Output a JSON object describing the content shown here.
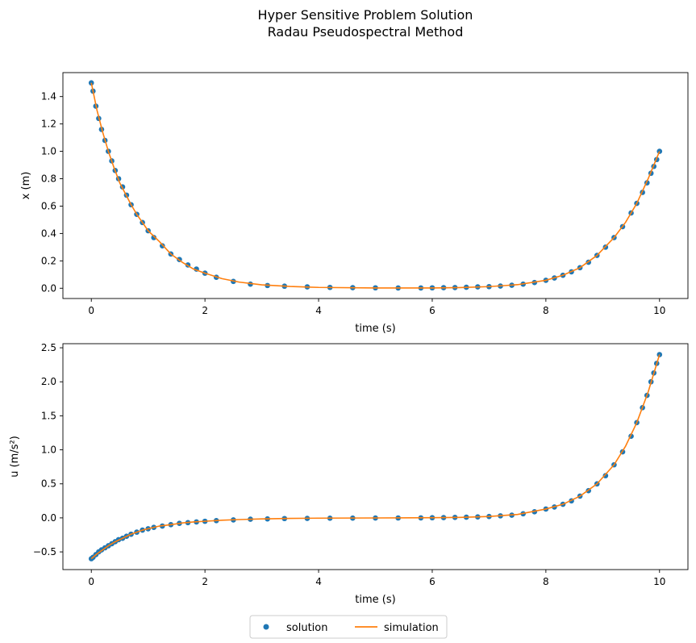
{
  "figure": {
    "title_line1": "Hyper Sensitive Problem Solution",
    "title_line2": "Radau Pseudospectral Method"
  },
  "legend": {
    "placement": "bottom-center",
    "columns": 2,
    "entries": [
      {
        "label": "solution",
        "marker": "dot",
        "color": "#1f77b4"
      },
      {
        "label": "simulation",
        "marker": "line",
        "color": "#ff7f0e"
      }
    ]
  },
  "chart_data": [
    {
      "type": "line",
      "xlabel": "time (s)",
      "ylabel": "x (m)",
      "xlim": [
        -0.5,
        10.5
      ],
      "ylim": [
        -0.075,
        1.575
      ],
      "xticks": [
        0,
        2,
        4,
        6,
        8,
        10
      ],
      "yticks": [
        0.0,
        0.2,
        0.4,
        0.6,
        0.8,
        1.0,
        1.2,
        1.4
      ],
      "ytick_labels": [
        "0.0",
        "0.2",
        "0.4",
        "0.6",
        "0.8",
        "1.0",
        "1.2",
        "1.4"
      ],
      "grid": false,
      "series": [
        {
          "name": "solution",
          "style": "markers",
          "x": [
            0.0,
            0.03,
            0.08,
            0.13,
            0.18,
            0.24,
            0.3,
            0.36,
            0.42,
            0.48,
            0.55,
            0.62,
            0.7,
            0.8,
            0.9,
            1.0,
            1.1,
            1.25,
            1.4,
            1.55,
            1.7,
            1.85,
            2.0,
            2.2,
            2.5,
            2.8,
            3.1,
            3.4,
            3.8,
            4.2,
            4.6,
            5.0,
            5.4,
            5.8,
            6.0,
            6.2,
            6.4,
            6.6,
            6.8,
            7.0,
            7.2,
            7.4,
            7.6,
            7.8,
            8.0,
            8.15,
            8.3,
            8.45,
            8.6,
            8.75,
            8.9,
            9.05,
            9.2,
            9.35,
            9.5,
            9.6,
            9.7,
            9.78,
            9.85,
            9.9,
            9.95,
            10.0
          ],
          "y": [
            1.5,
            1.44,
            1.33,
            1.24,
            1.16,
            1.08,
            1.0,
            0.93,
            0.86,
            0.8,
            0.74,
            0.68,
            0.61,
            0.54,
            0.48,
            0.42,
            0.37,
            0.31,
            0.25,
            0.21,
            0.17,
            0.14,
            0.11,
            0.08,
            0.05,
            0.03,
            0.02,
            0.015,
            0.01,
            0.006,
            0.004,
            0.003,
            0.002,
            0.002,
            0.003,
            0.004,
            0.005,
            0.007,
            0.01,
            0.012,
            0.016,
            0.022,
            0.03,
            0.042,
            0.058,
            0.075,
            0.095,
            0.12,
            0.15,
            0.19,
            0.24,
            0.3,
            0.37,
            0.45,
            0.55,
            0.62,
            0.7,
            0.77,
            0.84,
            0.89,
            0.94,
            1.0
          ]
        },
        {
          "name": "simulation",
          "style": "line",
          "x": [
            0.0,
            0.1,
            0.2,
            0.3,
            0.4,
            0.5,
            0.6,
            0.7,
            0.8,
            0.9,
            1.0,
            1.2,
            1.4,
            1.6,
            1.8,
            2.0,
            2.3,
            2.6,
            3.0,
            3.5,
            4.0,
            5.0,
            6.0,
            6.5,
            7.0,
            7.5,
            8.0,
            8.3,
            8.6,
            8.9,
            9.2,
            9.4,
            9.6,
            9.8,
            10.0
          ],
          "y": [
            1.5,
            1.3,
            1.14,
            1.0,
            0.88,
            0.77,
            0.69,
            0.61,
            0.54,
            0.48,
            0.42,
            0.34,
            0.25,
            0.19,
            0.14,
            0.11,
            0.07,
            0.045,
            0.025,
            0.013,
            0.006,
            0.002,
            0.002,
            0.005,
            0.012,
            0.026,
            0.058,
            0.095,
            0.15,
            0.24,
            0.37,
            0.48,
            0.62,
            0.8,
            1.0
          ]
        }
      ]
    },
    {
      "type": "line",
      "xlabel": "time (s)",
      "ylabel": "u (m/s²)",
      "xlim": [
        -0.5,
        10.5
      ],
      "ylim": [
        -0.76,
        2.56
      ],
      "xticks": [
        0,
        2,
        4,
        6,
        8,
        10
      ],
      "yticks": [
        -0.5,
        0.0,
        0.5,
        1.0,
        1.5,
        2.0,
        2.5
      ],
      "ytick_labels": [
        "−0.5",
        "0.0",
        "0.5",
        "1.0",
        "1.5",
        "2.0",
        "2.5"
      ],
      "grid": false,
      "series": [
        {
          "name": "solution",
          "style": "markers",
          "x": [
            0.0,
            0.03,
            0.08,
            0.13,
            0.18,
            0.24,
            0.3,
            0.36,
            0.42,
            0.48,
            0.55,
            0.62,
            0.7,
            0.8,
            0.9,
            1.0,
            1.1,
            1.25,
            1.4,
            1.55,
            1.7,
            1.85,
            2.0,
            2.2,
            2.5,
            2.8,
            3.1,
            3.4,
            3.8,
            4.2,
            4.6,
            5.0,
            5.4,
            5.8,
            6.0,
            6.2,
            6.4,
            6.6,
            6.8,
            7.0,
            7.2,
            7.4,
            7.6,
            7.8,
            8.0,
            8.15,
            8.3,
            8.45,
            8.6,
            8.75,
            8.9,
            9.05,
            9.2,
            9.35,
            9.5,
            9.6,
            9.7,
            9.78,
            9.85,
            9.9,
            9.95,
            10.0
          ],
          "y": [
            -0.6,
            -0.58,
            -0.54,
            -0.5,
            -0.47,
            -0.44,
            -0.41,
            -0.38,
            -0.35,
            -0.32,
            -0.3,
            -0.27,
            -0.24,
            -0.21,
            -0.18,
            -0.16,
            -0.14,
            -0.12,
            -0.1,
            -0.08,
            -0.07,
            -0.06,
            -0.05,
            -0.04,
            -0.03,
            -0.02,
            -0.015,
            -0.01,
            -0.008,
            -0.005,
            -0.003,
            -0.002,
            -0.001,
            0.0,
            0.002,
            0.004,
            0.007,
            0.01,
            0.014,
            0.02,
            0.03,
            0.04,
            0.06,
            0.09,
            0.13,
            0.16,
            0.2,
            0.25,
            0.32,
            0.4,
            0.5,
            0.62,
            0.78,
            0.97,
            1.2,
            1.4,
            1.62,
            1.8,
            2.0,
            2.13,
            2.27,
            2.4
          ]
        },
        {
          "name": "simulation",
          "style": "line",
          "x": [
            0.0,
            0.1,
            0.2,
            0.3,
            0.4,
            0.5,
            0.6,
            0.7,
            0.8,
            0.9,
            1.0,
            1.2,
            1.4,
            1.6,
            1.8,
            2.0,
            2.3,
            2.6,
            3.0,
            3.5,
            4.0,
            5.0,
            6.0,
            6.5,
            7.0,
            7.5,
            8.0,
            8.3,
            8.6,
            8.9,
            9.2,
            9.4,
            9.6,
            9.8,
            10.0
          ],
          "y": [
            -0.6,
            -0.53,
            -0.47,
            -0.41,
            -0.36,
            -0.32,
            -0.28,
            -0.24,
            -0.21,
            -0.18,
            -0.16,
            -0.12,
            -0.1,
            -0.075,
            -0.06,
            -0.05,
            -0.035,
            -0.025,
            -0.015,
            -0.008,
            -0.004,
            -0.001,
            0.002,
            0.007,
            0.02,
            0.05,
            0.13,
            0.2,
            0.32,
            0.5,
            0.78,
            1.05,
            1.4,
            1.85,
            2.4
          ]
        }
      ]
    }
  ]
}
